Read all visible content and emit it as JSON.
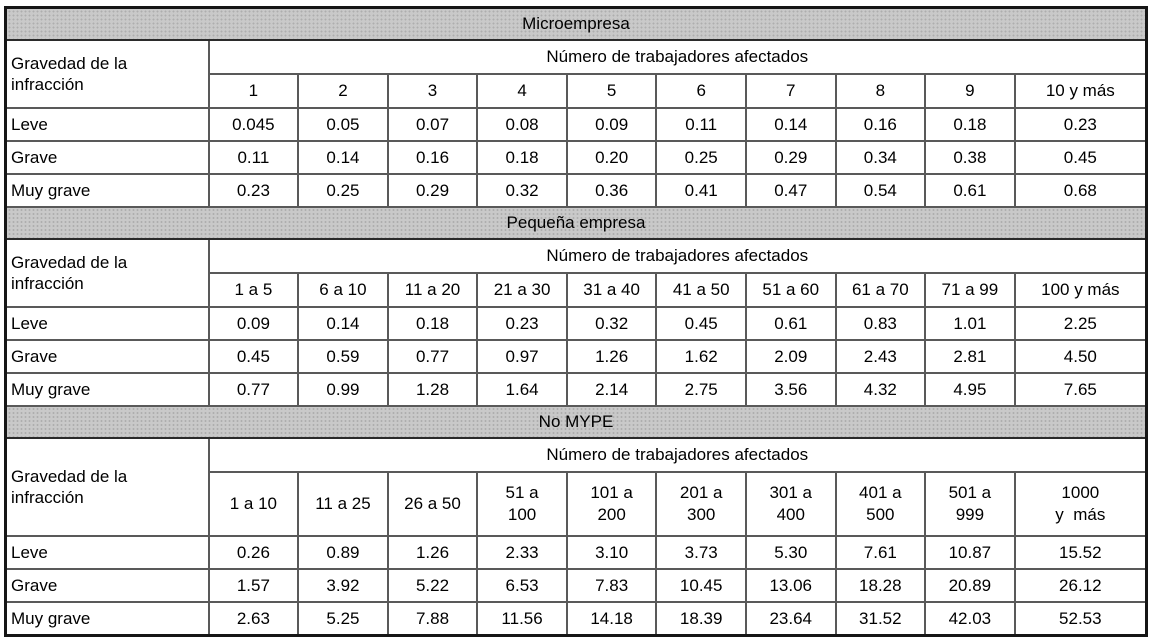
{
  "colors": {
    "section_band_fill": "#c9c9c9",
    "section_band_dots": "#aeaeae",
    "grid_line": "#595959",
    "outer_border": "#161616"
  },
  "table": {
    "row_label_header": "Gravedad de la\ninfracción",
    "col_group_header": "Número de trabajadores afectados",
    "severity_levels": [
      "Leve",
      "Grave",
      "Muy grave"
    ],
    "sections": [
      {
        "title": "Microempresa",
        "columns": [
          "1",
          "2",
          "3",
          "4",
          "5",
          "6",
          "7",
          "8",
          "9",
          "10 y más"
        ],
        "rows": [
          {
            "label": "Leve",
            "values": [
              "0.045",
              "0.05",
              "0.07",
              "0.08",
              "0.09",
              "0.11",
              "0.14",
              "0.16",
              "0.18",
              "0.23"
            ]
          },
          {
            "label": "Grave",
            "values": [
              "0.11",
              "0.14",
              "0.16",
              "0.18",
              "0.20",
              "0.25",
              "0.29",
              "0.34",
              "0.38",
              "0.45"
            ]
          },
          {
            "label": "Muy grave",
            "values": [
              "0.23",
              "0.25",
              "0.29",
              "0.32",
              "0.36",
              "0.41",
              "0.47",
              "0.54",
              "0.61",
              "0.68"
            ]
          }
        ]
      },
      {
        "title": "Pequeña empresa",
        "columns": [
          "1 a 5",
          "6 a 10",
          "11 a 20",
          "21 a 30",
          "31 a 40",
          "41 a 50",
          "51 a 60",
          "61 a 70",
          "71 a 99",
          "100 y más"
        ],
        "rows": [
          {
            "label": "Leve",
            "values": [
              "0.09",
              "0.14",
              "0.18",
              "0.23",
              "0.32",
              "0.45",
              "0.61",
              "0.83",
              "1.01",
              "2.25"
            ]
          },
          {
            "label": "Grave",
            "values": [
              "0.45",
              "0.59",
              "0.77",
              "0.97",
              "1.26",
              "1.62",
              "2.09",
              "2.43",
              "2.81",
              "4.50"
            ]
          },
          {
            "label": "Muy grave",
            "values": [
              "0.77",
              "0.99",
              "1.28",
              "1.64",
              "2.14",
              "2.75",
              "3.56",
              "4.32",
              "4.95",
              "7.65"
            ]
          }
        ]
      },
      {
        "title": "No MYPE",
        "columns": [
          "1 a 10",
          "11 a 25",
          "26 a 50",
          "51 a\n100",
          "101 a\n200",
          "201 a\n300",
          "301 a\n400",
          "401 a\n500",
          "501 a\n999",
          "1000\ny  más"
        ],
        "rows": [
          {
            "label": "Leve",
            "values": [
              "0.26",
              "0.89",
              "1.26",
              "2.33",
              "3.10",
              "3.73",
              "5.30",
              "7.61",
              "10.87",
              "15.52"
            ]
          },
          {
            "label": "Grave",
            "values": [
              "1.57",
              "3.92",
              "5.22",
              "6.53",
              "7.83",
              "10.45",
              "13.06",
              "18.28",
              "20.89",
              "26.12"
            ]
          },
          {
            "label": "Muy grave",
            "values": [
              "2.63",
              "5.25",
              "7.88",
              "11.56",
              "14.18",
              "18.39",
              "23.64",
              "31.52",
              "42.03",
              "52.53"
            ]
          }
        ]
      }
    ]
  }
}
